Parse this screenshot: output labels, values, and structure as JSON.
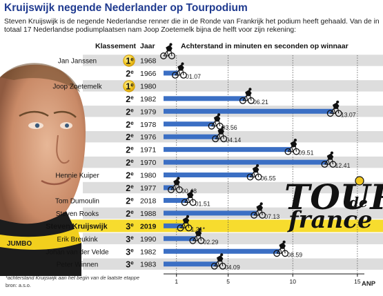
{
  "title": "Kruijswijk negende Nederlander op Tourpodium",
  "intro": "Steven Kruijswijk  is de negende Nederlandse renner die in de Ronde van Frankrijk het podium heeft gehaald.  Van de in totaal 17 Nederlandse podiumplaatsen nam Joop Zoetemelk bijna de helft voor zijn rekening:",
  "footnote": "*achterstand Kruijswijk aan het begin van de laatste etappe",
  "source": "bron: a.s.o.",
  "agency": "ANP",
  "logo": {
    "line1": "TOUR",
    "line2": "de",
    "line3": "france"
  },
  "colors": {
    "bar": "#3b6fc4",
    "row_band": "#dddddd",
    "highlight": "#f7dc2e",
    "title": "#1f3a8f",
    "gold": "#f2c81f"
  },
  "chart_data": {
    "type": "bar",
    "headers": {
      "rank": "Klassement",
      "year": "Jaar",
      "value": "Achterstand in minuten en seconden op winnaar"
    },
    "x_ticks": [
      "1",
      "5",
      "10",
      "15"
    ],
    "x_tick_values": [
      1,
      5,
      10,
      15
    ],
    "xlim": [
      0,
      16.5
    ],
    "rows": [
      {
        "rider": "Jan Janssen",
        "rank": "1",
        "rank_suffix": "e",
        "year": "1968",
        "value": 0,
        "label": ""
      },
      {
        "rider": "",
        "rank": "2",
        "rank_suffix": "e",
        "year": "1966",
        "value": 1.12,
        "label": "01.07"
      },
      {
        "rider": "Joop Zoetemelk",
        "rank": "1",
        "rank_suffix": "e",
        "year": "1980",
        "value": 0,
        "label": ""
      },
      {
        "rider": "",
        "rank": "2",
        "rank_suffix": "e",
        "year": "1982",
        "value": 6.35,
        "label": "06.21"
      },
      {
        "rider": "",
        "rank": "2",
        "rank_suffix": "e",
        "year": "1979",
        "value": 13.12,
        "label": "13.07"
      },
      {
        "rider": "",
        "rank": "2",
        "rank_suffix": "e",
        "year": "1978",
        "value": 3.93,
        "label": "03.56"
      },
      {
        "rider": "",
        "rank": "2",
        "rank_suffix": "e",
        "year": "1976",
        "value": 4.23,
        "label": "04.14"
      },
      {
        "rider": "",
        "rank": "2",
        "rank_suffix": "e",
        "year": "1971",
        "value": 9.85,
        "label": "09.51"
      },
      {
        "rider": "",
        "rank": "2",
        "rank_suffix": "e",
        "year": "1970",
        "value": 12.68,
        "label": "12.41"
      },
      {
        "rider": "Hennie Kuiper",
        "rank": "2",
        "rank_suffix": "e",
        "year": "1980",
        "value": 6.92,
        "label": "06.55"
      },
      {
        "rider": "",
        "rank": "2",
        "rank_suffix": "e",
        "year": "1977",
        "value": 0.8,
        "label": "00.48"
      },
      {
        "rider": "Tom Dumoulin",
        "rank": "2",
        "rank_suffix": "e",
        "year": "2018",
        "value": 1.85,
        "label": "01.51"
      },
      {
        "rider": "Steven Rooks",
        "rank": "2",
        "rank_suffix": "e",
        "year": "1988",
        "value": 7.22,
        "label": "07.13"
      },
      {
        "rider": "Steven Kruijswijk",
        "rank": "3",
        "rank_suffix": "e",
        "year": "2019",
        "value": 1.52,
        "label": "1.31*",
        "highlight": true
      },
      {
        "rider": "Erik Breukink",
        "rank": "3",
        "rank_suffix": "e",
        "year": "1990",
        "value": 2.48,
        "label": "02.29"
      },
      {
        "rider": "Johan van der Velde",
        "rank": "3",
        "rank_suffix": "e",
        "year": "1982",
        "value": 8.98,
        "label": "08.59"
      },
      {
        "rider": "Peter Winnen",
        "rank": "3",
        "rank_suffix": "e",
        "year": "1983",
        "value": 4.15,
        "label": "04.09"
      }
    ]
  }
}
